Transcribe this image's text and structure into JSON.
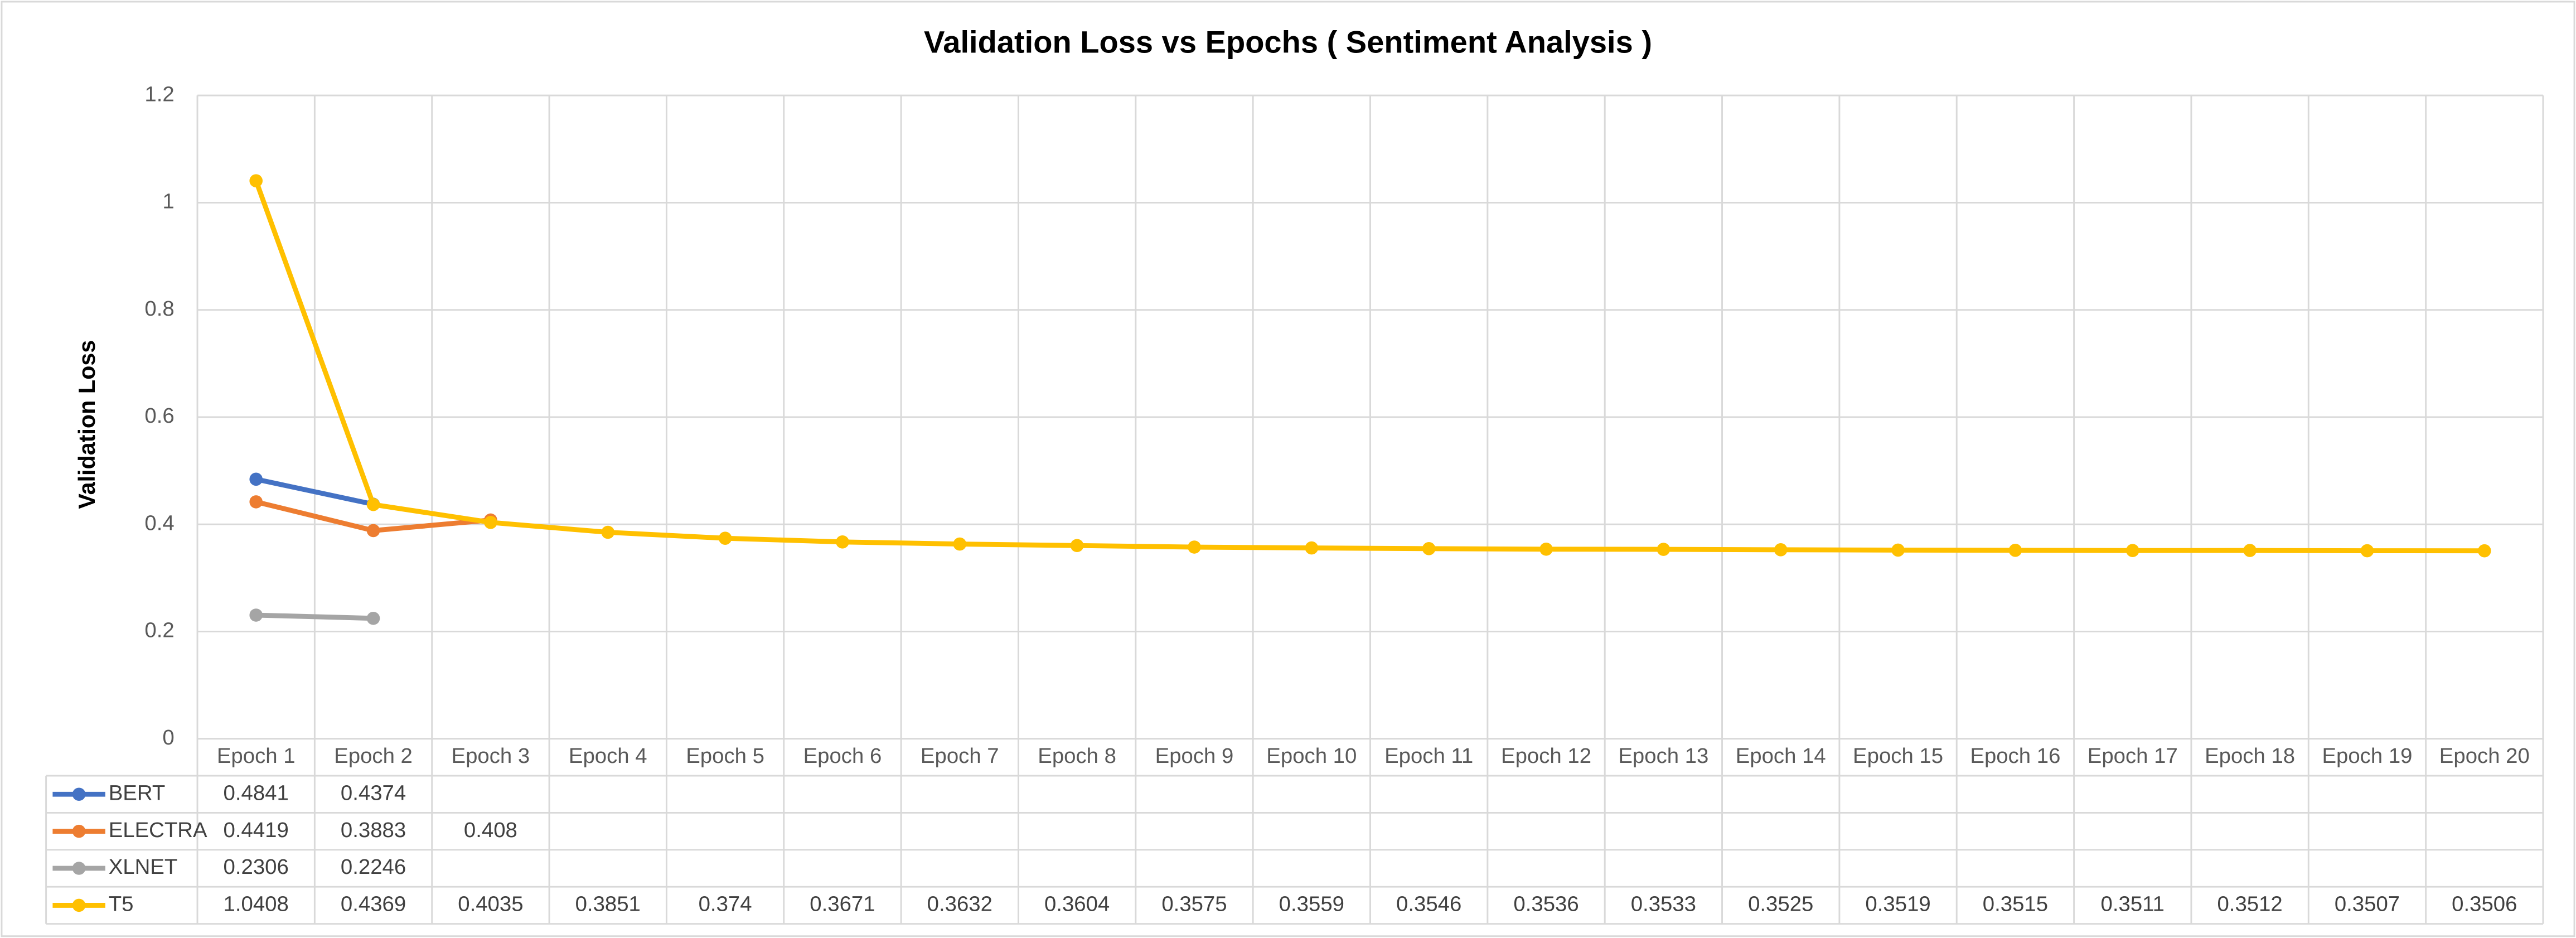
{
  "chart_data": {
    "type": "line",
    "title": "Validation Loss vs Epochs ( Sentiment Analysis )",
    "y_label": "Validation Loss",
    "categories": [
      "Epoch 1",
      "Epoch 2",
      "Epoch 3",
      "Epoch 4",
      "Epoch 5",
      "Epoch 6",
      "Epoch 7",
      "Epoch 8",
      "Epoch 9",
      "Epoch 10",
      "Epoch 11",
      "Epoch 12",
      "Epoch 13",
      "Epoch 14",
      "Epoch 15",
      "Epoch 16",
      "Epoch 17",
      "Epoch 18",
      "Epoch 19",
      "Epoch 20"
    ],
    "series": [
      {
        "name": "BERT",
        "color": "#4472c4",
        "values": [
          0.4841,
          0.4374,
          null,
          null,
          null,
          null,
          null,
          null,
          null,
          null,
          null,
          null,
          null,
          null,
          null,
          null,
          null,
          null,
          null,
          null
        ]
      },
      {
        "name": "ELECTRA",
        "color": "#ed7d31",
        "values": [
          0.4419,
          0.3883,
          0.408,
          null,
          null,
          null,
          null,
          null,
          null,
          null,
          null,
          null,
          null,
          null,
          null,
          null,
          null,
          null,
          null,
          null
        ]
      },
      {
        "name": "XLNET",
        "color": "#a5a5a5",
        "values": [
          0.2306,
          0.2246,
          null,
          null,
          null,
          null,
          null,
          null,
          null,
          null,
          null,
          null,
          null,
          null,
          null,
          null,
          null,
          null,
          null,
          null
        ]
      },
      {
        "name": "T5",
        "color": "#ffc000",
        "values": [
          1.0408,
          0.4369,
          0.4035,
          0.3851,
          0.374,
          0.3671,
          0.3632,
          0.3604,
          0.3575,
          0.3559,
          0.3546,
          0.3536,
          0.3533,
          0.3525,
          0.3519,
          0.3515,
          0.3511,
          0.3512,
          0.3507,
          0.3506
        ]
      }
    ],
    "ylim": [
      0,
      1.2
    ],
    "yticks": [
      0,
      0.2,
      0.4,
      0.6,
      0.8,
      1,
      1.2
    ],
    "grid": true,
    "data_table": true
  }
}
